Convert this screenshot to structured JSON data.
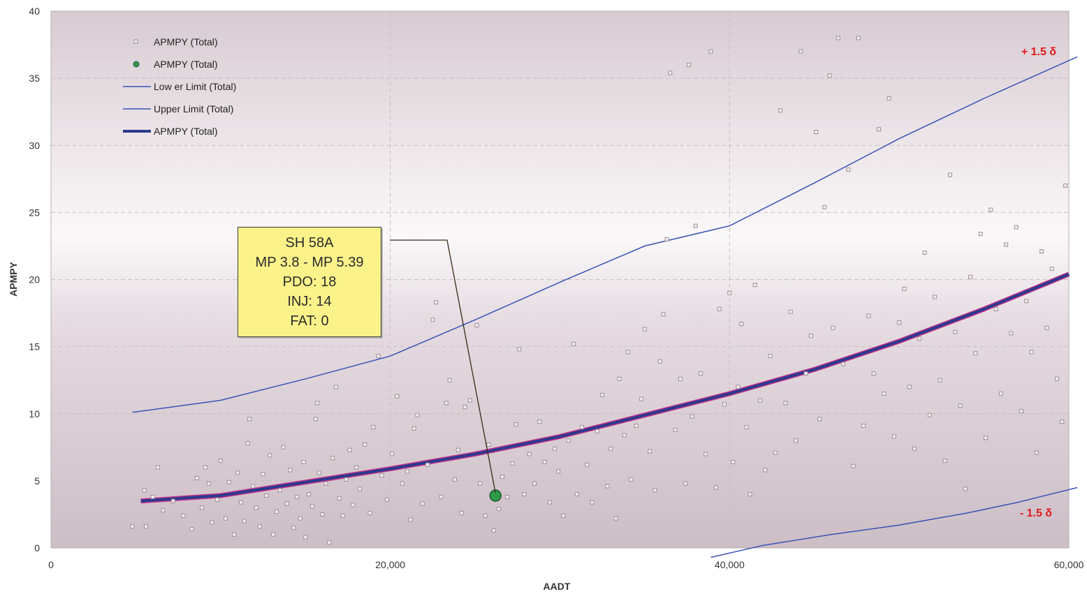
{
  "chart_data": {
    "type": "scatter",
    "title": "",
    "xlabel": "AADT",
    "ylabel": "APMPY",
    "xlim": [
      0,
      60000
    ],
    "ylim": [
      0,
      40
    ],
    "x_ticks": [
      0,
      20000,
      40000,
      60000
    ],
    "x_tick_labels": [
      "0",
      "20,000",
      "40,000",
      "60,000"
    ],
    "y_ticks": [
      0,
      5,
      10,
      15,
      20,
      25,
      30,
      35,
      40
    ],
    "y_tick_labels": [
      "0",
      "5",
      "10",
      "15",
      "20",
      "25",
      "30",
      "35",
      "40"
    ],
    "grid": true,
    "legend_position": "top-left",
    "legend": [
      {
        "label": "APMPY (Total)",
        "marker": "square"
      },
      {
        "label": "APMPY (Total)",
        "marker": "circle"
      },
      {
        "label": "Low er Limit (Total)",
        "marker": "thin-line"
      },
      {
        "label": "Upper Limit (Total)",
        "marker": "thin-line"
      },
      {
        "label": "APMPY (Total)",
        "marker": "thick-line"
      }
    ],
    "series": [
      {
        "name": "APMPY (Total)",
        "kind": "points",
        "color": "#9a8f95",
        "points": [
          [
            4800,
            1.6
          ],
          [
            5600,
            1.6
          ],
          [
            5500,
            4.3
          ],
          [
            6000,
            3.8
          ],
          [
            6300,
            6.0
          ],
          [
            6600,
            2.8
          ],
          [
            7200,
            3.5
          ],
          [
            7800,
            2.4
          ],
          [
            8300,
            1.4
          ],
          [
            8600,
            5.2
          ],
          [
            8900,
            3.0
          ],
          [
            9100,
            6.0
          ],
          [
            9300,
            4.8
          ],
          [
            9500,
            1.9
          ],
          [
            9800,
            3.6
          ],
          [
            10000,
            6.5
          ],
          [
            10300,
            2.2
          ],
          [
            10500,
            4.9
          ],
          [
            10800,
            1.0
          ],
          [
            11000,
            5.6
          ],
          [
            11200,
            3.4
          ],
          [
            11400,
            2.0
          ],
          [
            11600,
            7.8
          ],
          [
            11700,
            9.6
          ],
          [
            11900,
            4.6
          ],
          [
            12100,
            3.0
          ],
          [
            12300,
            1.6
          ],
          [
            12500,
            5.5
          ],
          [
            12700,
            3.9
          ],
          [
            12900,
            6.9
          ],
          [
            13100,
            1.0
          ],
          [
            13300,
            2.7
          ],
          [
            13500,
            4.3
          ],
          [
            13700,
            7.5
          ],
          [
            13900,
            3.3
          ],
          [
            14100,
            5.8
          ],
          [
            14300,
            1.5
          ],
          [
            14500,
            3.8
          ],
          [
            14700,
            2.2
          ],
          [
            14900,
            6.4
          ],
          [
            15000,
            0.8
          ],
          [
            15200,
            4.0
          ],
          [
            15400,
            3.1
          ],
          [
            15600,
            9.6
          ],
          [
            15700,
            10.8
          ],
          [
            15800,
            5.6
          ],
          [
            16000,
            2.5
          ],
          [
            16200,
            4.8
          ],
          [
            16400,
            0.4
          ],
          [
            16600,
            6.7
          ],
          [
            16800,
            12.0
          ],
          [
            17000,
            3.7
          ],
          [
            17200,
            2.4
          ],
          [
            17400,
            5.1
          ],
          [
            17600,
            7.3
          ],
          [
            17800,
            3.2
          ],
          [
            18000,
            6.0
          ],
          [
            18200,
            4.4
          ],
          [
            18500,
            7.7
          ],
          [
            18800,
            2.6
          ],
          [
            19000,
            9.0
          ],
          [
            19300,
            14.3
          ],
          [
            19500,
            5.4
          ],
          [
            19800,
            3.6
          ],
          [
            20100,
            7.0
          ],
          [
            20400,
            11.3
          ],
          [
            20700,
            4.8
          ],
          [
            21000,
            5.7
          ],
          [
            21200,
            2.1
          ],
          [
            21400,
            8.9
          ],
          [
            21600,
            9.9
          ],
          [
            21900,
            3.3
          ],
          [
            22200,
            6.2
          ],
          [
            22500,
            17.0
          ],
          [
            22700,
            18.3
          ],
          [
            23000,
            3.8
          ],
          [
            23300,
            10.8
          ],
          [
            23500,
            12.5
          ],
          [
            23800,
            5.1
          ],
          [
            24000,
            7.3
          ],
          [
            24200,
            2.6
          ],
          [
            24400,
            10.5
          ],
          [
            24700,
            11.0
          ],
          [
            25100,
            16.6
          ],
          [
            25300,
            4.8
          ],
          [
            25600,
            2.4
          ],
          [
            25800,
            7.7
          ],
          [
            26100,
            1.3
          ],
          [
            26400,
            2.9
          ],
          [
            26600,
            5.3
          ],
          [
            26900,
            3.8
          ],
          [
            27200,
            6.3
          ],
          [
            27400,
            9.2
          ],
          [
            27600,
            14.8
          ],
          [
            27900,
            4.0
          ],
          [
            28200,
            7.0
          ],
          [
            28500,
            4.8
          ],
          [
            28800,
            9.4
          ],
          [
            29100,
            6.4
          ],
          [
            29400,
            3.4
          ],
          [
            29700,
            7.4
          ],
          [
            29900,
            5.7
          ],
          [
            30200,
            2.4
          ],
          [
            30500,
            8.0
          ],
          [
            30800,
            15.2
          ],
          [
            31000,
            4.0
          ],
          [
            31300,
            9.0
          ],
          [
            31600,
            6.2
          ],
          [
            31900,
            3.4
          ],
          [
            32200,
            8.7
          ],
          [
            32500,
            11.4
          ],
          [
            32800,
            4.6
          ],
          [
            33000,
            7.4
          ],
          [
            33300,
            2.2
          ],
          [
            33500,
            12.6
          ],
          [
            33800,
            8.4
          ],
          [
            34000,
            14.6
          ],
          [
            34200,
            5.1
          ],
          [
            34500,
            9.1
          ],
          [
            34800,
            11.1
          ],
          [
            35000,
            16.3
          ],
          [
            35300,
            7.2
          ],
          [
            35600,
            4.3
          ],
          [
            35900,
            13.9
          ],
          [
            36100,
            17.4
          ],
          [
            36300,
            23.0
          ],
          [
            36500,
            35.4
          ],
          [
            36800,
            8.8
          ],
          [
            37100,
            12.6
          ],
          [
            37400,
            4.8
          ],
          [
            37600,
            36.0
          ],
          [
            37800,
            9.8
          ],
          [
            38000,
            24.0
          ],
          [
            38300,
            13.0
          ],
          [
            38600,
            7.0
          ],
          [
            38900,
            37.0
          ],
          [
            39200,
            4.5
          ],
          [
            39400,
            17.8
          ],
          [
            39700,
            10.7
          ],
          [
            40000,
            19.0
          ],
          [
            40200,
            6.4
          ],
          [
            40500,
            12.0
          ],
          [
            40700,
            16.7
          ],
          [
            41000,
            9.0
          ],
          [
            41200,
            4.0
          ],
          [
            41500,
            19.6
          ],
          [
            41800,
            11.0
          ],
          [
            42100,
            5.8
          ],
          [
            42400,
            14.3
          ],
          [
            42700,
            7.1
          ],
          [
            43000,
            32.6
          ],
          [
            43300,
            10.8
          ],
          [
            43600,
            17.6
          ],
          [
            43900,
            8.0
          ],
          [
            44200,
            37.0
          ],
          [
            44500,
            13.0
          ],
          [
            44800,
            15.8
          ],
          [
            45100,
            31.0
          ],
          [
            45300,
            9.6
          ],
          [
            45600,
            25.4
          ],
          [
            45900,
            35.2
          ],
          [
            46100,
            16.4
          ],
          [
            46400,
            38.0
          ],
          [
            46700,
            13.7
          ],
          [
            47000,
            28.2
          ],
          [
            47300,
            6.1
          ],
          [
            47600,
            38.0
          ],
          [
            47900,
            9.1
          ],
          [
            48200,
            17.3
          ],
          [
            48500,
            13.0
          ],
          [
            48800,
            31.2
          ],
          [
            49100,
            11.5
          ],
          [
            49400,
            33.5
          ],
          [
            49700,
            8.3
          ],
          [
            50000,
            16.8
          ],
          [
            50300,
            19.3
          ],
          [
            50600,
            12.0
          ],
          [
            50900,
            7.4
          ],
          [
            51200,
            15.6
          ],
          [
            51500,
            22.0
          ],
          [
            51800,
            9.9
          ],
          [
            52100,
            18.7
          ],
          [
            52400,
            12.5
          ],
          [
            52700,
            6.5
          ],
          [
            53000,
            27.8
          ],
          [
            53300,
            16.1
          ],
          [
            53600,
            10.6
          ],
          [
            53900,
            4.4
          ],
          [
            54200,
            20.2
          ],
          [
            54500,
            14.5
          ],
          [
            54800,
            23.4
          ],
          [
            55100,
            8.2
          ],
          [
            55400,
            25.2
          ],
          [
            55700,
            17.8
          ],
          [
            56000,
            11.5
          ],
          [
            56300,
            22.6
          ],
          [
            56600,
            16.0
          ],
          [
            56900,
            23.9
          ],
          [
            57200,
            10.2
          ],
          [
            57500,
            18.4
          ],
          [
            57800,
            14.6
          ],
          [
            58100,
            7.1
          ],
          [
            58400,
            22.1
          ],
          [
            58700,
            16.4
          ],
          [
            59000,
            20.8
          ],
          [
            59300,
            12.6
          ],
          [
            59600,
            9.4
          ],
          [
            59800,
            27.0
          ]
        ]
      },
      {
        "name": "APMPY (Total)",
        "kind": "highlight",
        "color": "#2e9a4a",
        "points": [
          [
            26200,
            3.9
          ]
        ]
      },
      {
        "name": "Low er Limit (Total)",
        "kind": "line",
        "color": "#3a52b8",
        "points": [
          [
            38900,
            -0.7
          ],
          [
            42000,
            0.2
          ],
          [
            46000,
            1.0
          ],
          [
            50000,
            1.7
          ],
          [
            54000,
            2.6
          ],
          [
            57000,
            3.4
          ],
          [
            60500,
            4.5
          ]
        ]
      },
      {
        "name": "Upper Limit (Total)",
        "kind": "line",
        "color": "#3a52b8",
        "points": [
          [
            4800,
            10.1
          ],
          [
            10000,
            11.0
          ],
          [
            15000,
            12.6
          ],
          [
            20000,
            14.3
          ],
          [
            25000,
            17.0
          ],
          [
            30000,
            19.8
          ],
          [
            35000,
            22.5
          ],
          [
            40000,
            24.0
          ],
          [
            45000,
            27.2
          ],
          [
            50000,
            30.5
          ],
          [
            55000,
            33.5
          ],
          [
            60500,
            36.6
          ]
        ]
      },
      {
        "name": "APMPY (Total)",
        "kind": "thick-line",
        "color": "#2a3a8e",
        "points": [
          [
            5300,
            3.5
          ],
          [
            10000,
            3.9
          ],
          [
            15000,
            4.9
          ],
          [
            20000,
            5.9
          ],
          [
            25000,
            7.0
          ],
          [
            30000,
            8.3
          ],
          [
            35000,
            9.9
          ],
          [
            40000,
            11.5
          ],
          [
            45000,
            13.3
          ],
          [
            50000,
            15.4
          ],
          [
            55000,
            17.8
          ],
          [
            60000,
            20.4
          ]
        ]
      }
    ],
    "annotations": {
      "callout": [
        "SH 58A",
        "MP 3.8 - MP 5.39",
        "PDO:  18",
        "INJ:  14",
        "FAT:  0"
      ],
      "callout_target": [
        26200,
        3.9
      ],
      "upper_band_label": "+ 1.5 δ",
      "lower_band_label": "- 1.5 δ"
    }
  }
}
